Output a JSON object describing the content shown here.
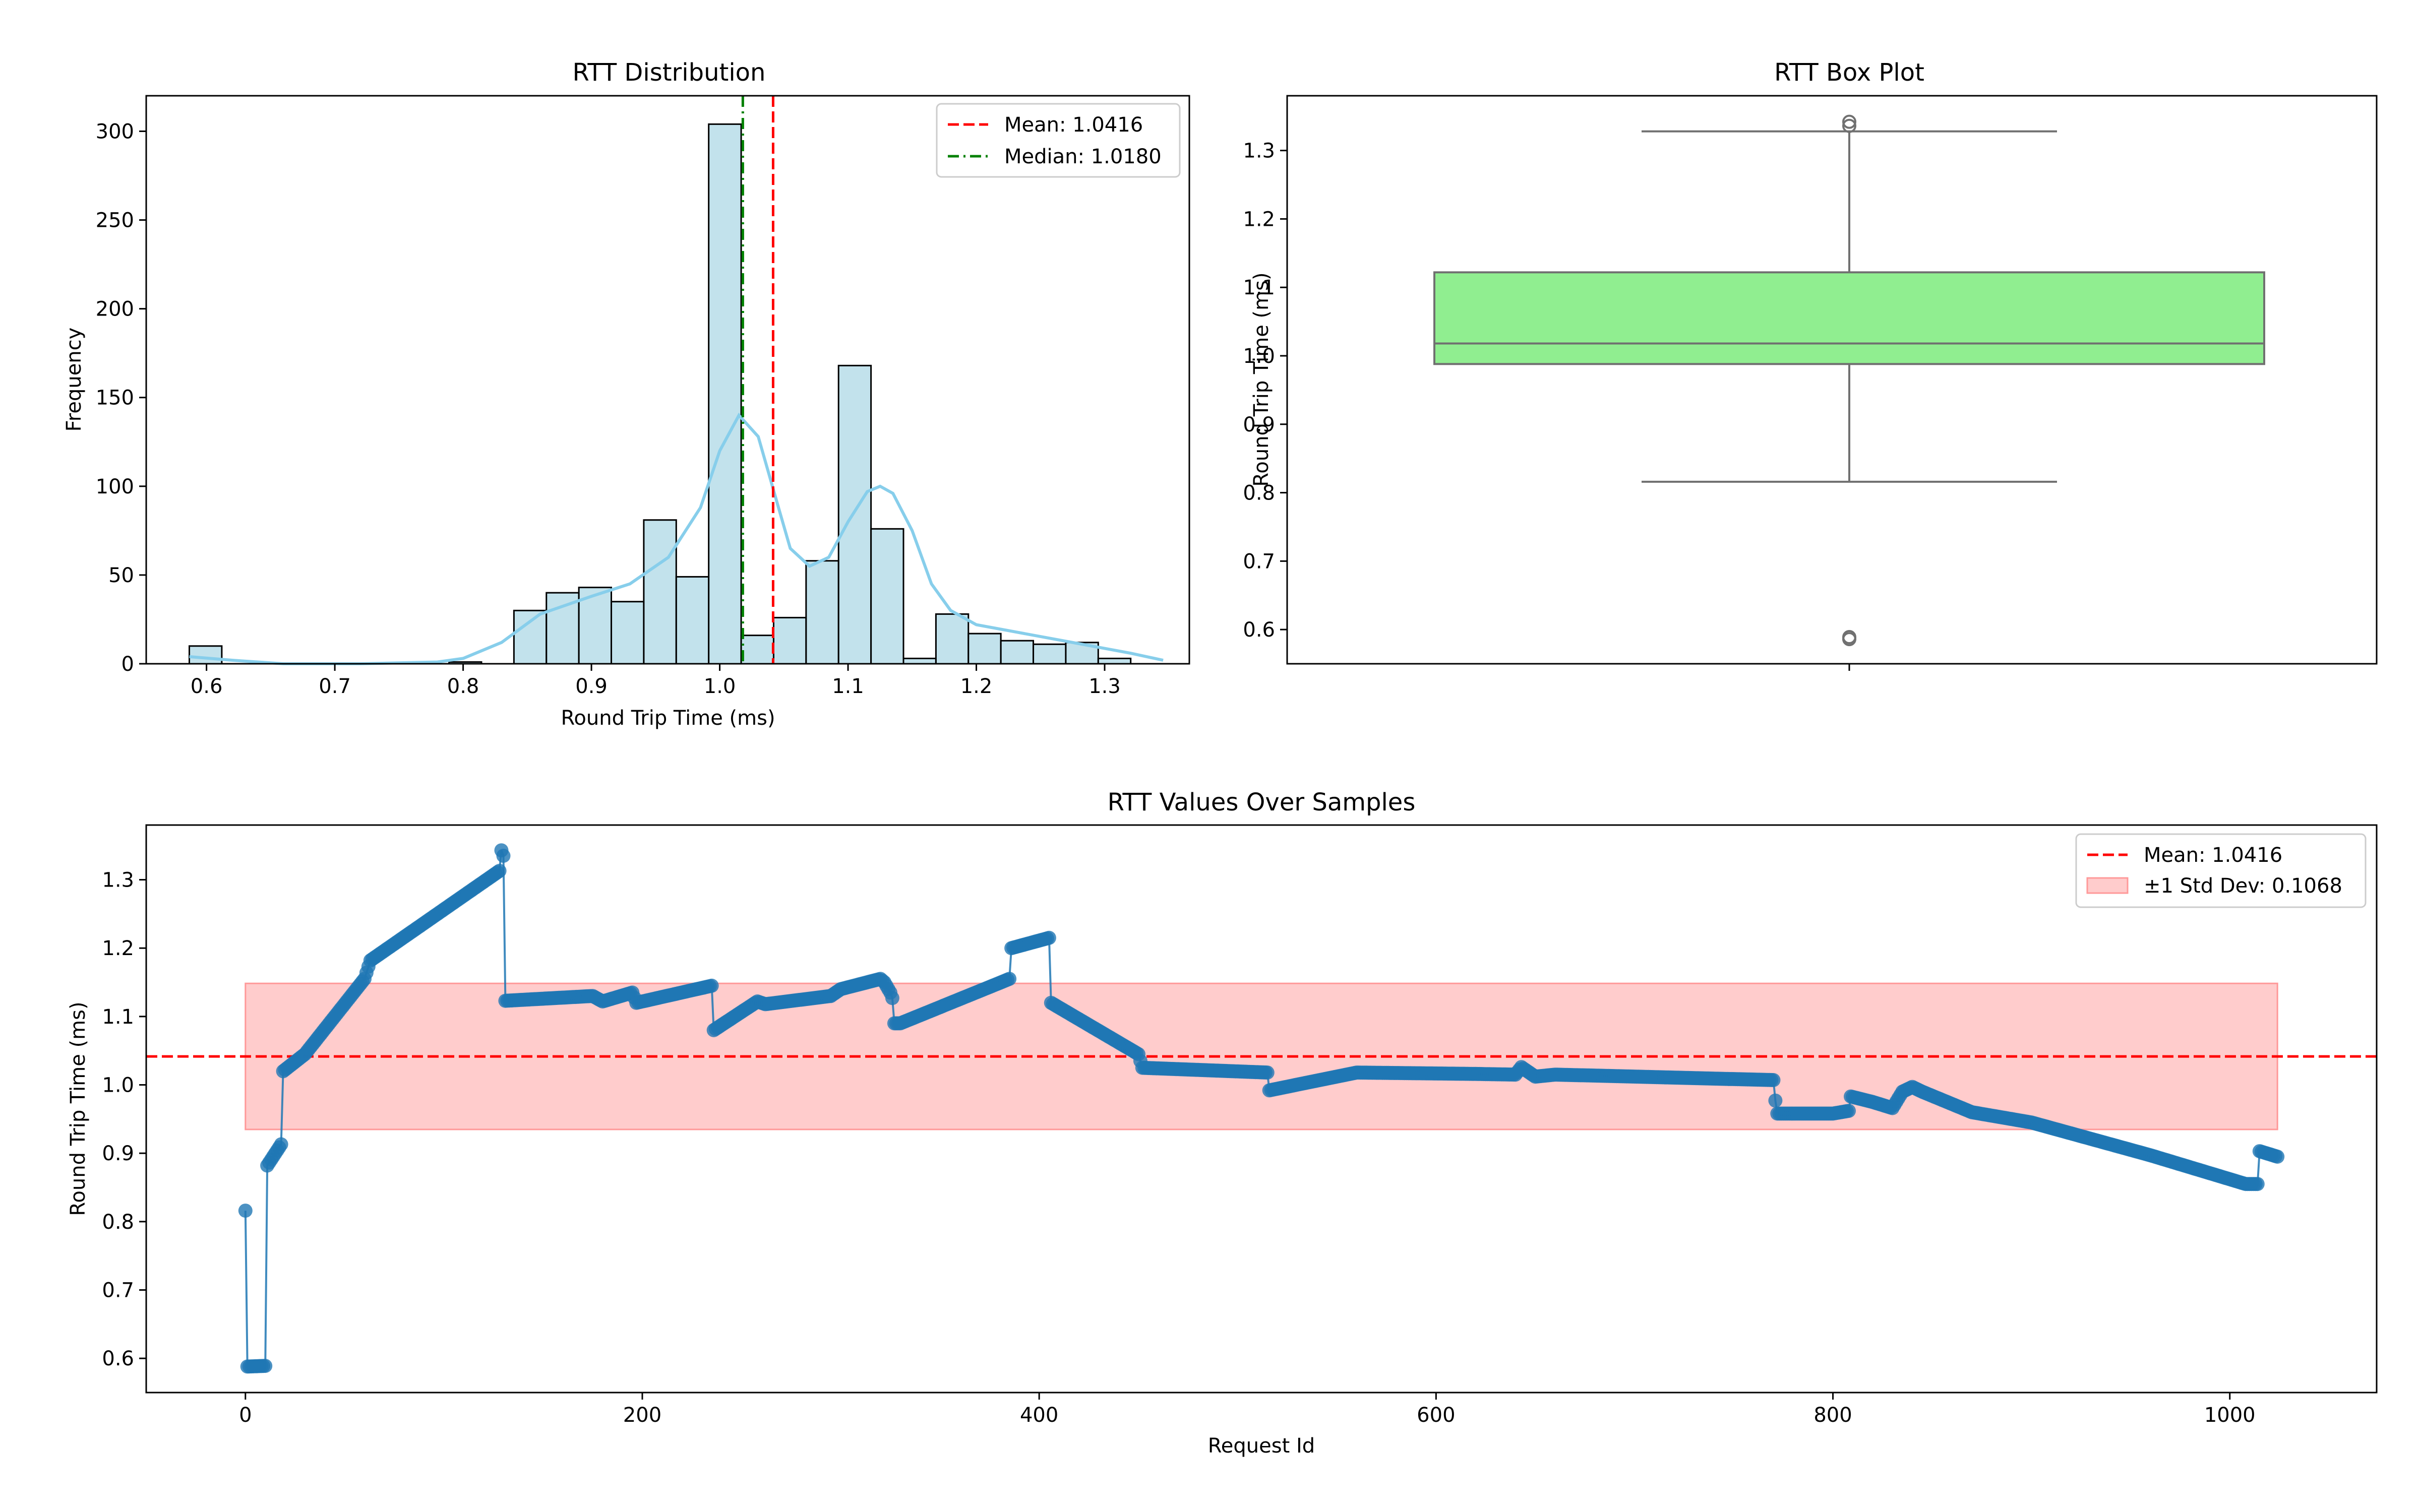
{
  "chart_data": [
    {
      "type": "bar",
      "title": "RTT Distribution",
      "xlabel": "Round Trip Time (ms)",
      "ylabel": "Frequency",
      "xlim": [
        0.553,
        1.366
      ],
      "ylim": [
        0,
        320
      ],
      "xticks": [
        0.6,
        0.7,
        0.8,
        0.9,
        1.0,
        1.1,
        1.2,
        1.3
      ],
      "xtick_labels": [
        "0.6",
        "0.7",
        "0.8",
        "0.9",
        "1.0",
        "1.1",
        "1.2",
        "1.3"
      ],
      "yticks": [
        0,
        50,
        100,
        150,
        200,
        250,
        300
      ],
      "ytick_labels": [
        "0",
        "50",
        "100",
        "150",
        "200",
        "250",
        "300"
      ],
      "bin_edges": [
        0.5866,
        0.6119,
        0.6372,
        0.6625,
        0.6878,
        0.7131,
        0.7384,
        0.7637,
        0.789,
        0.8143,
        0.8396,
        0.8649,
        0.8902,
        0.9155,
        0.9408,
        0.9661,
        0.9914,
        1.0167,
        1.042,
        1.0673,
        1.0926,
        1.1179,
        1.1432,
        1.1685,
        1.1938,
        1.2191,
        1.2444,
        1.2697,
        1.295,
        1.3203,
        1.3456
      ],
      "counts": [
        10,
        0,
        0,
        0,
        0,
        0,
        0,
        0,
        1,
        0,
        30,
        40,
        43,
        35,
        81,
        49,
        304,
        16,
        26,
        58,
        168,
        76,
        3,
        28,
        17,
        13,
        11,
        12,
        3,
        0
      ],
      "bar_color": "#add8e6",
      "kde": {
        "x": [
          0.5866,
          0.62,
          0.66,
          0.72,
          0.78,
          0.8,
          0.83,
          0.86,
          0.9,
          0.93,
          0.96,
          0.985,
          1.0,
          1.015,
          1.03,
          1.045,
          1.055,
          1.07,
          1.085,
          1.1,
          1.115,
          1.125,
          1.135,
          1.15,
          1.165,
          1.18,
          1.2,
          1.23,
          1.26,
          1.29,
          1.32,
          1.3456
        ],
        "y": [
          4,
          2,
          0,
          0,
          1,
          3,
          12,
          28,
          38,
          45,
          60,
          88,
          120,
          140,
          128,
          90,
          65,
          55,
          60,
          80,
          97,
          100,
          96,
          75,
          45,
          30,
          22,
          18,
          14,
          10,
          6,
          2
        ],
        "color": "#87ceeb"
      },
      "mean": 1.0416,
      "median": 1.018,
      "legend": {
        "location": "upper right",
        "entries": [
          "Mean: 1.0416",
          "Median: 1.0180"
        ]
      },
      "colors": {
        "mean": "#ff0000",
        "median": "#008000"
      }
    },
    {
      "type": "box",
      "title": "RTT Box Plot",
      "ylabel": "Round Trip Time (ms)",
      "ylim": [
        0.55,
        1.38
      ],
      "yticks": [
        0.6,
        0.7,
        0.8,
        0.9,
        1.0,
        1.1,
        1.2,
        1.3
      ],
      "ytick_labels": [
        "0.6",
        "0.7",
        "0.8",
        "0.9",
        "1.0",
        "1.1",
        "1.2",
        "1.3"
      ],
      "q1": 0.988,
      "median": 1.018,
      "q3": 1.122,
      "whisker_low": 0.816,
      "whisker_high": 1.328,
      "outliers": [
        0.586,
        0.589,
        1.336,
        1.342
      ],
      "box_color": "#90ee90"
    },
    {
      "type": "line",
      "title": "RTT Values Over Samples",
      "xlabel": "Request Id",
      "ylabel": "Round Trip Time (ms)",
      "xlim": [
        -50,
        1074
      ],
      "ylim": [
        0.55,
        1.38
      ],
      "xticks": [
        0,
        200,
        400,
        600,
        800,
        1000
      ],
      "xtick_labels": [
        "0",
        "200",
        "400",
        "600",
        "800",
        "1000"
      ],
      "yticks": [
        0.6,
        0.7,
        0.8,
        0.9,
        1.0,
        1.1,
        1.2,
        1.3
      ],
      "ytick_labels": [
        "0.6",
        "0.7",
        "0.8",
        "0.9",
        "1.0",
        "1.1",
        "1.2",
        "1.3"
      ],
      "series": [
        {
          "color": "#1f77b4",
          "x": [
            0,
            1,
            10,
            11,
            18,
            19,
            30,
            60,
            63,
            128,
            129,
            130,
            131,
            175,
            180,
            195,
            197,
            235,
            236,
            258,
            262,
            295,
            300,
            320,
            322,
            325,
            326,
            327,
            330,
            385,
            386,
            405,
            406,
            450,
            452,
            515,
            516,
            560,
            620,
            640,
            643,
            650,
            660,
            770,
            771,
            772,
            800,
            808,
            809,
            820,
            830,
            835,
            840,
            845,
            870,
            900,
            960,
            1008,
            1014,
            1015,
            1024
          ],
          "y": [
            0.816,
            0.588,
            0.589,
            0.882,
            0.913,
            1.02,
            1.045,
            1.155,
            1.182,
            1.313,
            1.343,
            1.335,
            1.123,
            1.13,
            1.122,
            1.135,
            1.12,
            1.145,
            1.08,
            1.122,
            1.118,
            1.13,
            1.14,
            1.155,
            1.15,
            1.135,
            1.127,
            1.09,
            1.09,
            1.155,
            1.2,
            1.215,
            1.12,
            1.045,
            1.025,
            1.018,
            0.992,
            1.018,
            1.016,
            1.015,
            1.026,
            1.012,
            1.015,
            1.007,
            0.977,
            0.958,
            0.958,
            0.962,
            0.983,
            0.975,
            0.966,
            0.99,
            0.997,
            0.99,
            0.96,
            0.945,
            0.897,
            0.855,
            0.855,
            0.903,
            0.895
          ]
        }
      ],
      "mean": 1.0416,
      "std": 0.1068,
      "band_x": [
        0,
        1024
      ],
      "legend": {
        "location": "upper right",
        "entries": [
          "Mean: 1.0416",
          "±1 Std Dev: 0.1068"
        ]
      },
      "colors": {
        "mean": "#ff0000",
        "band": "#ff9999"
      }
    }
  ]
}
